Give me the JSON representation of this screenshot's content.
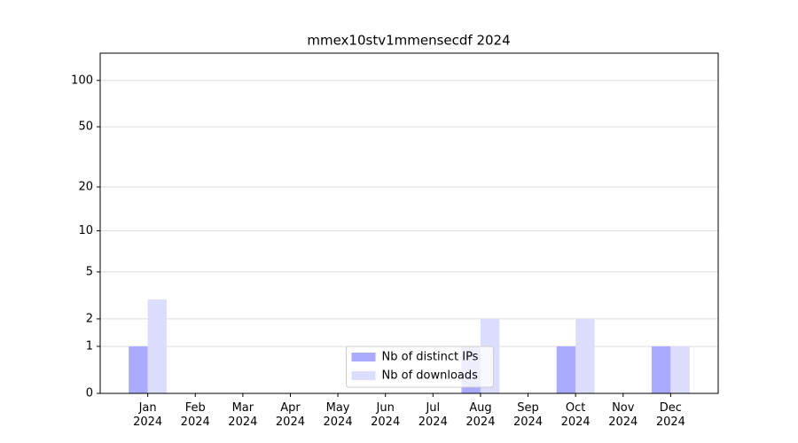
{
  "chart_data": {
    "type": "bar",
    "title": "mmex10stv1mmensecdf 2024",
    "categories": [
      "Jan\n2024",
      "Feb\n2024",
      "Mar\n2024",
      "Apr\n2024",
      "May\n2024",
      "Jun\n2024",
      "Jul\n2024",
      "Aug\n2024",
      "Sep\n2024",
      "Oct\n2024",
      "Nov\n2024",
      "Dec\n2024"
    ],
    "series": [
      {
        "name": "Nb of distinct IPs",
        "color": "#aaaaff",
        "values": [
          1,
          0,
          0,
          0,
          0,
          0,
          0,
          1,
          0,
          1,
          0,
          1
        ]
      },
      {
        "name": "Nb of downloads",
        "color": "#ddddff",
        "values": [
          3,
          0,
          0,
          0,
          0,
          0,
          0,
          2,
          0,
          2,
          0,
          1
        ]
      }
    ],
    "yscale": "symlog",
    "ylim": [
      0,
      150
    ],
    "yticks": [
      0,
      1,
      2,
      5,
      10,
      20,
      50,
      100
    ],
    "grid": true,
    "legend": "lower center"
  }
}
